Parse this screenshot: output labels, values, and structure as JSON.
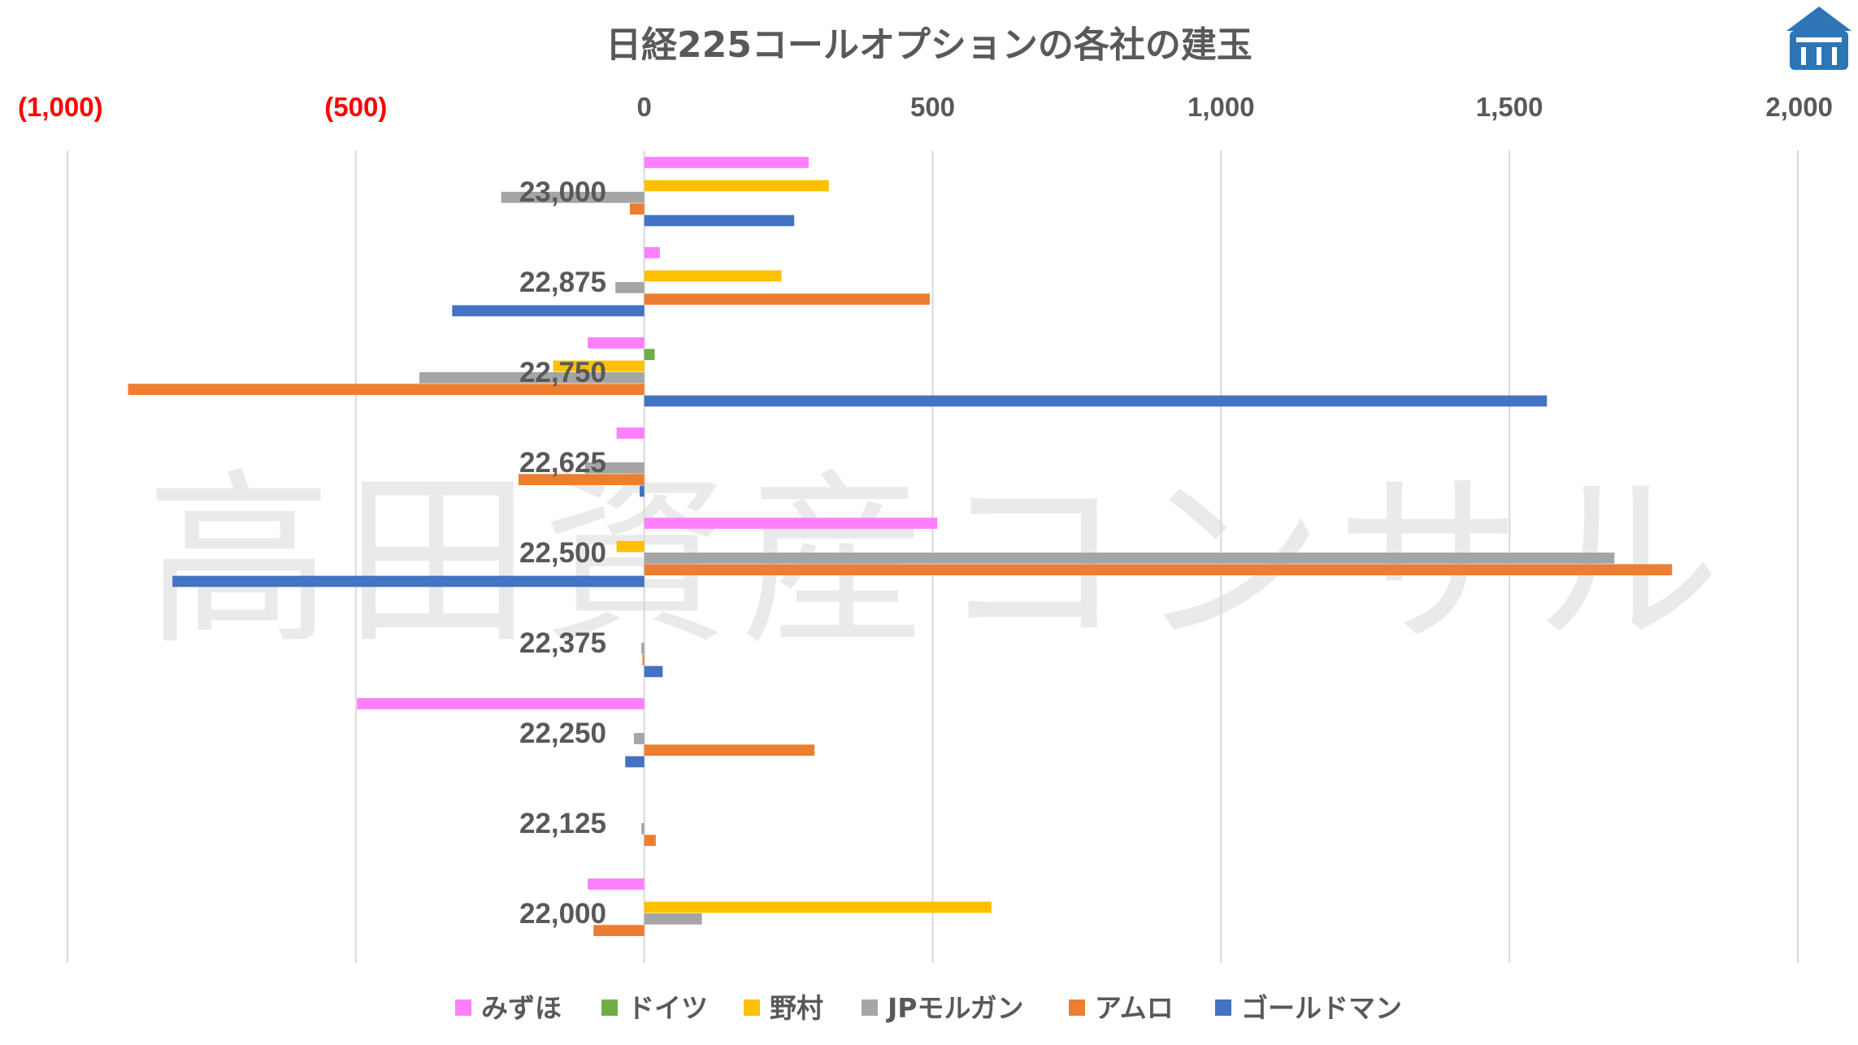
{
  "chart_data": {
    "type": "bar",
    "orientation": "horizontal",
    "title": "日経225コールオプションの各社の建玉",
    "watermark": "高田資産コンサル",
    "xlim": [
      -1000,
      2000
    ],
    "x_ticks": [
      {
        "value": -1000,
        "label": "(1,000)"
      },
      {
        "value": -500,
        "label": "(500)"
      },
      {
        "value": 0,
        "label": "0"
      },
      {
        "value": 500,
        "label": "500"
      },
      {
        "value": 1000,
        "label": "1,000"
      },
      {
        "value": 1500,
        "label": "1,500"
      },
      {
        "value": 2000,
        "label": "2,000"
      }
    ],
    "negative_tick_color": "#ff0000",
    "positive_tick_color": "#595959",
    "grid": true,
    "legend_position": "bottom",
    "categories": [
      "23,000",
      "22,875",
      "22,750",
      "22,625",
      "22,500",
      "22,375",
      "22,250",
      "22,125",
      "22,000"
    ],
    "series": [
      {
        "name": "みずほ",
        "color": "#ff80ff",
        "values": [
          285,
          27,
          -98,
          -48,
          508,
          0,
          -498,
          0,
          -98
        ]
      },
      {
        "name": "ドイツ",
        "color": "#70ad47",
        "values": [
          0,
          0,
          18,
          0,
          0,
          0,
          0,
          0,
          0
        ]
      },
      {
        "name": "野村",
        "color": "#ffc000",
        "values": [
          320,
          238,
          -158,
          0,
          -48,
          0,
          0,
          0,
          602
        ]
      },
      {
        "name": "JPモルガン",
        "color": "#a5a5a5",
        "values": [
          -248,
          -50,
          -390,
          -103,
          1682,
          -5,
          -18,
          -5,
          100
        ]
      },
      {
        "name": "アムロ",
        "color": "#ed7d31",
        "values": [
          -25,
          495,
          -895,
          -218,
          1782,
          -3,
          295,
          20,
          -88
        ]
      },
      {
        "name": "ゴールドマン",
        "color": "#4472c4",
        "values": [
          260,
          -333,
          1565,
          -8,
          -818,
          32,
          -33,
          0,
          0
        ]
      }
    ]
  },
  "logo": {
    "name": "takata-logo",
    "color": "#2e75b6"
  }
}
